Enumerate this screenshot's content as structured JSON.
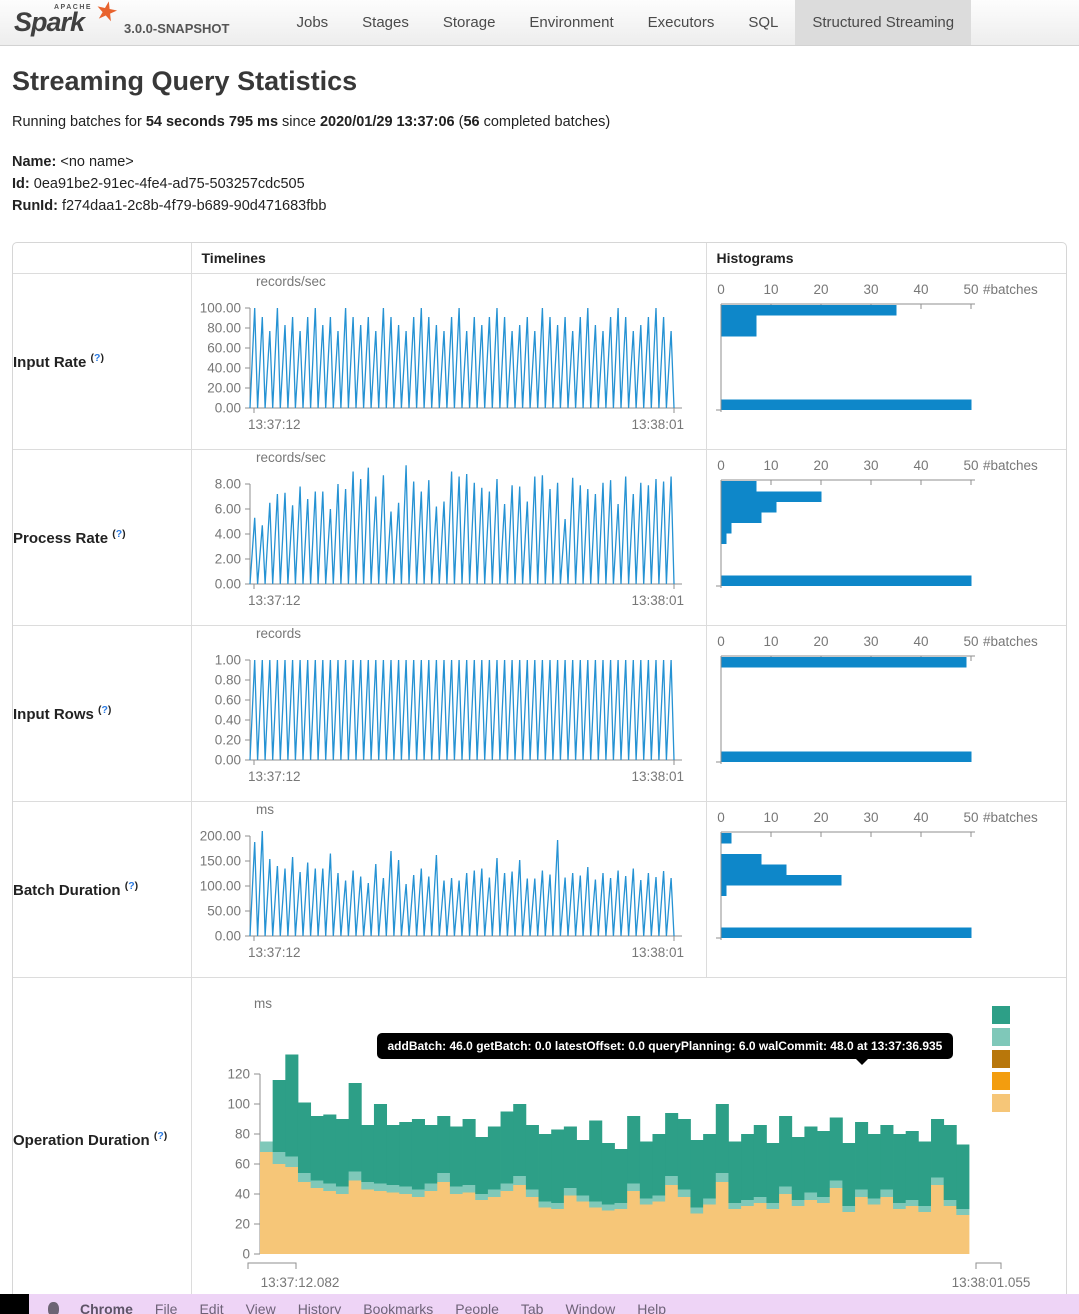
{
  "nav": {
    "brand": {
      "apache": "APACHE",
      "name": "Spark",
      "version": "3.0.0-SNAPSHOT"
    },
    "tabs": [
      {
        "label": "Jobs",
        "active": false
      },
      {
        "label": "Stages",
        "active": false
      },
      {
        "label": "Storage",
        "active": false
      },
      {
        "label": "Environment",
        "active": false
      },
      {
        "label": "Executors",
        "active": false
      },
      {
        "label": "SQL",
        "active": false
      },
      {
        "label": "Structured Streaming",
        "active": true
      }
    ]
  },
  "page": {
    "title": "Streaming Query Statistics",
    "status": {
      "prefix": "Running batches for ",
      "duration": "54 seconds 795 ms",
      "mid": " since ",
      "since": "2020/01/29 13:37:06",
      "paren": " (",
      "batches": "56",
      "suffix": " completed batches)"
    },
    "meta": [
      {
        "label": "Name:",
        "value": "<no name>"
      },
      {
        "label": "Id:",
        "value": "0ea91be2-91ec-4fe4-ad75-503257cdc505"
      },
      {
        "label": "RunId:",
        "value": "f274daa1-2c8b-4f79-b689-90d471683fbb"
      }
    ]
  },
  "table": {
    "headers": {
      "timelines": "Timelines",
      "histograms": "Histograms"
    },
    "help": {
      "open": "(",
      "q": "?",
      "close": ")"
    },
    "colors": {
      "line": "#2592d3",
      "hist": "#0e87c9"
    },
    "rows": [
      {
        "key": "input_rate",
        "label": "Input Rate"
      },
      {
        "key": "process_rate",
        "label": "Process Rate"
      },
      {
        "key": "input_rows",
        "label": "Input Rows"
      },
      {
        "key": "batch_duration",
        "label": "Batch Duration"
      }
    ],
    "operation_label": "Operation Duration"
  },
  "chart_data": {
    "input_rate": {
      "timeline": {
        "type": "line",
        "unit": "records/sec",
        "ymax": 100,
        "yticks": [
          "0.00",
          "20.00",
          "40.00",
          "60.00",
          "80.00",
          "100.00"
        ],
        "x_start": "13:37:12",
        "x_end": "13:38:01",
        "peaks": [
          100,
          91,
          77,
          100,
          83,
          91,
          77,
          91,
          100,
          83,
          91,
          77,
          100,
          91,
          83,
          91,
          77,
          100,
          91,
          83,
          77,
          91,
          100,
          91,
          83,
          77,
          91,
          100,
          77,
          91,
          83,
          91,
          100,
          91,
          77,
          83,
          91,
          77,
          100,
          91,
          83,
          91,
          77,
          91,
          100,
          83,
          77,
          91,
          100,
          91,
          77,
          83,
          91,
          100,
          91,
          77
        ]
      },
      "histogram": {
        "type": "bar",
        "xmax": 50,
        "xticks": [
          0,
          10,
          20,
          30,
          40,
          50
        ],
        "xlabel": "#batches",
        "bins": [
          35,
          7,
          7,
          0,
          0,
          0,
          0,
          0,
          0,
          50
        ]
      }
    },
    "process_rate": {
      "timeline": {
        "type": "line",
        "unit": "records/sec",
        "ymax": 8,
        "yticks": [
          "0.00",
          "2.00",
          "4.00",
          "6.00",
          "8.00"
        ],
        "x_start": "13:37:12",
        "x_end": "13:38:01",
        "peaks": [
          5.3,
          4.7,
          6.5,
          7.2,
          7.3,
          6.3,
          7.8,
          6.8,
          7.4,
          7.4,
          6.0,
          8.0,
          7.6,
          9.0,
          8.4,
          9.3,
          7.0,
          8.7,
          5.8,
          6.5,
          9.5,
          8.2,
          7.4,
          8.3,
          6.2,
          6.6,
          9.0,
          8.6,
          8.8,
          8.1,
          7.7,
          7.4,
          8.4,
          6.4,
          7.9,
          7.8,
          6.6,
          8.6,
          8.7,
          7.6,
          8.1,
          5.2,
          8.5,
          7.9,
          7.6,
          7.2,
          8.1,
          8.3,
          6.4,
          8.6,
          7.2,
          8.1,
          7.9,
          8.4,
          8.2,
          8.6
        ]
      },
      "histogram": {
        "type": "bar",
        "xmax": 50,
        "xticks": [
          0,
          10,
          20,
          30,
          40,
          50
        ],
        "xlabel": "#batches",
        "bins": [
          7,
          20,
          11,
          8,
          2,
          1,
          0,
          0,
          0,
          50
        ]
      }
    },
    "input_rows": {
      "timeline": {
        "type": "line",
        "unit": "records",
        "ymax": 1,
        "yticks": [
          "0.00",
          "0.20",
          "0.40",
          "0.60",
          "0.80",
          "1.00"
        ],
        "x_start": "13:37:12",
        "x_end": "13:38:01",
        "peaks": [
          1,
          1,
          1,
          1,
          1,
          1,
          1,
          1,
          1,
          1,
          1,
          1,
          1,
          1,
          1,
          1,
          1,
          1,
          1,
          1,
          1,
          1,
          1,
          1,
          1,
          1,
          1,
          1,
          1,
          1,
          1,
          1,
          1,
          1,
          1,
          1,
          1,
          1,
          1,
          1,
          1,
          1,
          1,
          1,
          1,
          1,
          1,
          1,
          1,
          1,
          1,
          1,
          1,
          1,
          1,
          1
        ]
      },
      "histogram": {
        "type": "bar",
        "xmax": 50,
        "xticks": [
          0,
          10,
          20,
          30,
          40,
          50
        ],
        "xlabel": "#batches",
        "bins": [
          49,
          0,
          0,
          0,
          0,
          0,
          0,
          0,
          0,
          50
        ]
      }
    },
    "batch_duration": {
      "timeline": {
        "type": "line",
        "unit": "ms",
        "ymax": 200,
        "yticks": [
          "0.00",
          "50.00",
          "100.00",
          "150.00",
          "200.00"
        ],
        "x_start": "13:37:12",
        "x_end": "13:38:01",
        "peaks": [
          188,
          210,
          154,
          140,
          135,
          158,
          128,
          147,
          135,
          135,
          165,
          126,
          111,
          131,
          119,
          106,
          144,
          116,
          170,
          152,
          104,
          122,
          135,
          119,
          162,
          111,
          116,
          111,
          126,
          131,
          135,
          117,
          156,
          126,
          129,
          152,
          115,
          115,
          131,
          123,
          192,
          117,
          126,
          121,
          138,
          113,
          126,
          116,
          131,
          120,
          135,
          112,
          126,
          118,
          130,
          116
        ]
      },
      "histogram": {
        "type": "bar",
        "xmax": 50,
        "xticks": [
          0,
          10,
          20,
          30,
          40,
          50
        ],
        "xlabel": "#batches",
        "bins": [
          2,
          0,
          8,
          13,
          24,
          1,
          0,
          0,
          0,
          50
        ]
      }
    },
    "operation_duration": {
      "type": "stacked-bar",
      "unit": "ms",
      "ymax": 120,
      "yticks": [
        "0",
        "20",
        "40",
        "60",
        "80",
        "100",
        "120"
      ],
      "x_start": "13:37:12.082",
      "x_end": "13:38:01.055",
      "tooltip": "addBatch: 46.0 getBatch: 0.0 latestOffset: 0.0 queryPlanning: 6.0 walCommit: 48.0 at 13:37:36.935",
      "legend": [
        {
          "name": "addBatch",
          "color": "#2d9f87"
        },
        {
          "name": "getBatch",
          "color": "#7fc8b9"
        },
        {
          "name": "latestOffset",
          "color": "#b8770b"
        },
        {
          "name": "queryPlanning",
          "color": "#f39d0e"
        },
        {
          "name": "walCommit",
          "color": "#f6c678"
        }
      ],
      "stack_order": [
        "walCommit",
        "queryPlanning",
        "addBatch"
      ],
      "stack_colors": [
        "#f6c678",
        "#7fc8b9",
        "#2d9f87"
      ],
      "bars": [
        [
          68,
          7,
          0
        ],
        [
          60,
          8,
          48
        ],
        [
          58,
          7,
          68
        ],
        [
          48,
          6,
          47
        ],
        [
          44,
          5,
          43
        ],
        [
          42,
          5,
          46
        ],
        [
          40,
          5,
          45
        ],
        [
          49,
          6,
          59
        ],
        [
          43,
          5,
          38
        ],
        [
          42,
          5,
          53
        ],
        [
          41,
          5,
          40
        ],
        [
          40,
          5,
          43
        ],
        [
          38,
          5,
          47
        ],
        [
          42,
          5,
          39
        ],
        [
          48,
          6,
          38
        ],
        [
          40,
          5,
          40
        ],
        [
          41,
          5,
          44
        ],
        [
          36,
          4,
          38
        ],
        [
          38,
          5,
          42
        ],
        [
          42,
          5,
          48
        ],
        [
          46,
          6,
          48
        ],
        [
          38,
          5,
          43
        ],
        [
          31,
          4,
          45
        ],
        [
          30,
          4,
          49
        ],
        [
          39,
          5,
          41
        ],
        [
          35,
          4,
          37
        ],
        [
          31,
          4,
          54
        ],
        [
          29,
          4,
          41
        ],
        [
          30,
          4,
          36
        ],
        [
          42,
          5,
          45
        ],
        [
          33,
          4,
          38
        ],
        [
          35,
          4,
          41
        ],
        [
          46,
          6,
          42
        ],
        [
          38,
          5,
          47
        ],
        [
          27,
          4,
          45
        ],
        [
          33,
          4,
          43
        ],
        [
          48,
          6,
          46
        ],
        [
          30,
          4,
          41
        ],
        [
          32,
          4,
          44
        ],
        [
          34,
          4,
          48
        ],
        [
          30,
          4,
          40
        ],
        [
          40,
          5,
          47
        ],
        [
          32,
          4,
          42
        ],
        [
          36,
          5,
          44
        ],
        [
          34,
          4,
          44
        ],
        [
          44,
          5,
          42
        ],
        [
          28,
          4,
          42
        ],
        [
          38,
          5,
          45
        ],
        [
          33,
          4,
          43
        ],
        [
          38,
          5,
          43
        ],
        [
          30,
          4,
          46
        ],
        [
          32,
          4,
          46
        ],
        [
          28,
          4,
          43
        ],
        [
          46,
          5,
          39
        ],
        [
          32,
          4,
          50
        ],
        [
          26,
          4,
          43
        ]
      ]
    }
  },
  "menubar": {
    "items": [
      {
        "label": "Chrome",
        "bold": true
      },
      {
        "label": "File",
        "bold": false
      },
      {
        "label": "Edit",
        "bold": false
      },
      {
        "label": "View",
        "bold": false
      },
      {
        "label": "History",
        "bold": false
      },
      {
        "label": "Bookmarks",
        "bold": false
      },
      {
        "label": "People",
        "bold": false
      },
      {
        "label": "Tab",
        "bold": false
      },
      {
        "label": "Window",
        "bold": false
      },
      {
        "label": "Help",
        "bold": false
      }
    ]
  }
}
